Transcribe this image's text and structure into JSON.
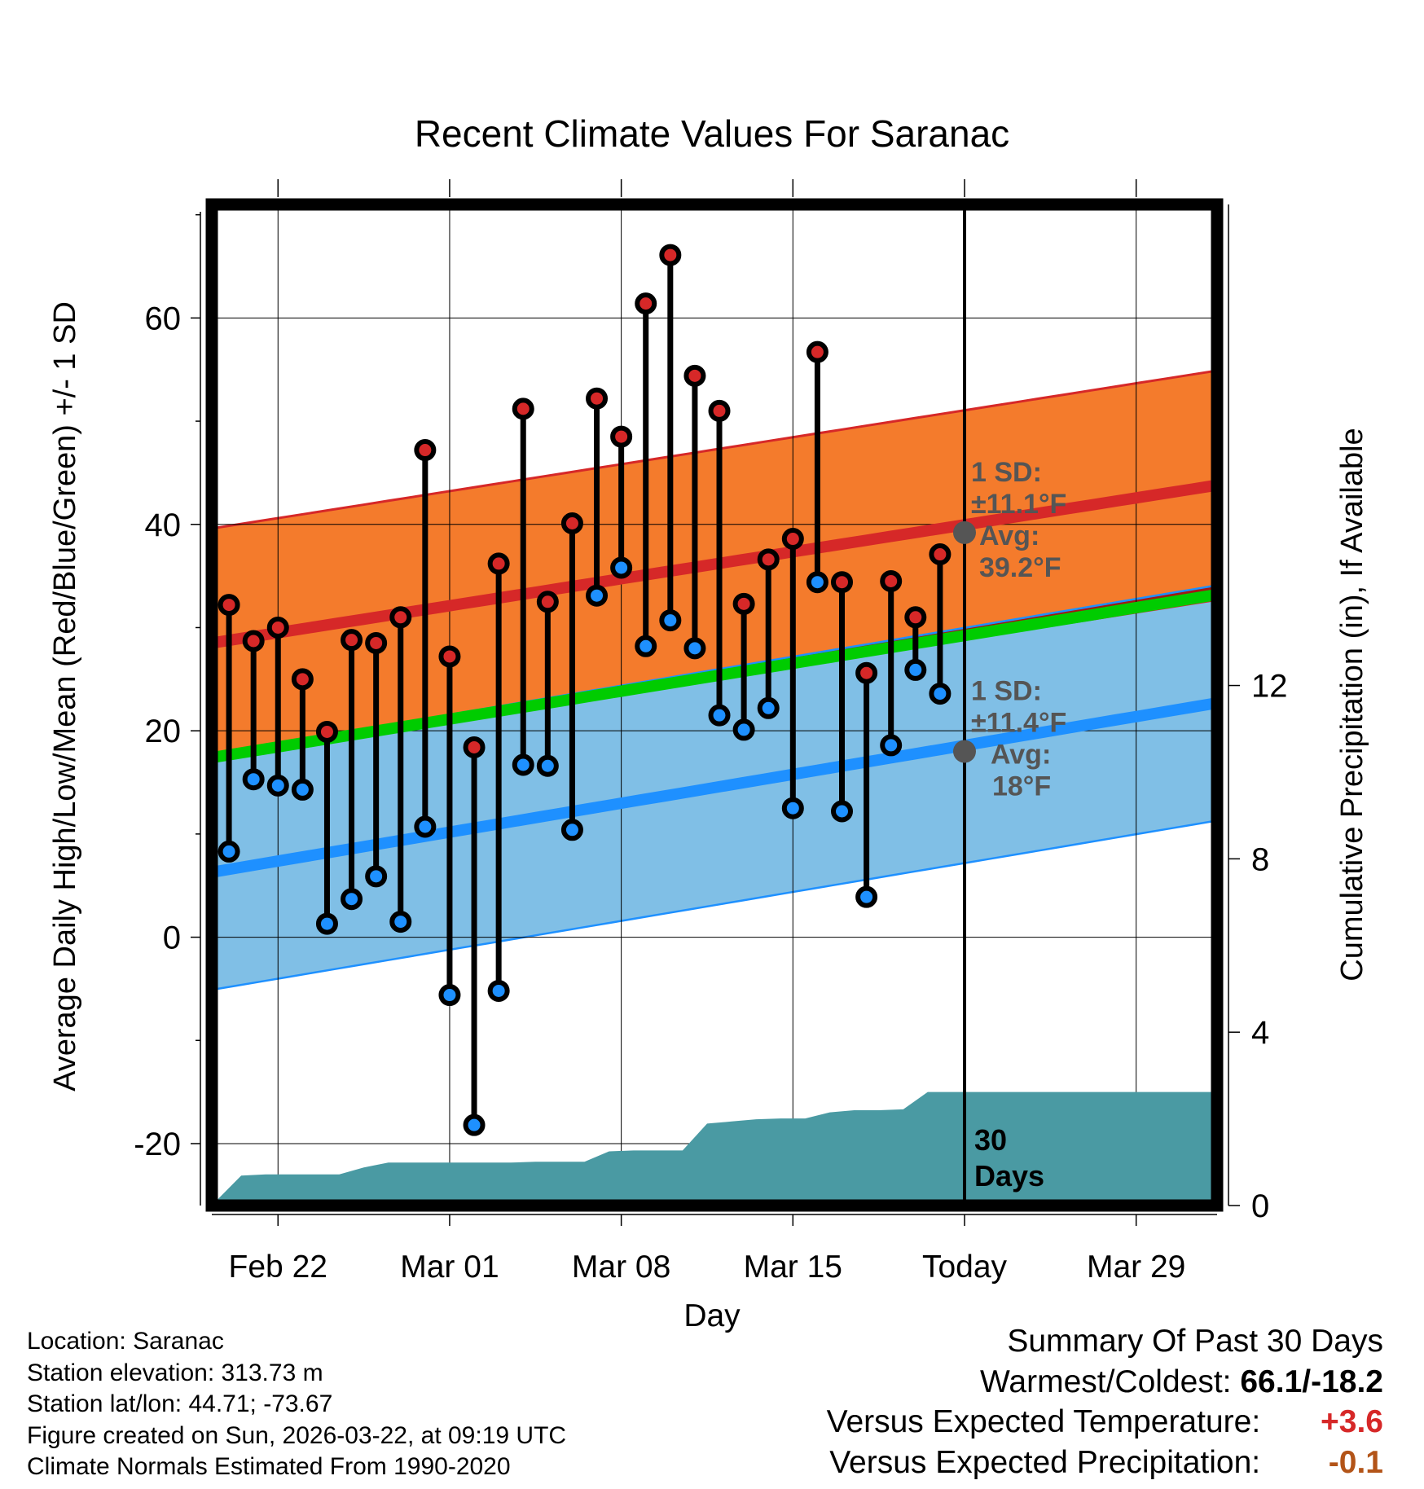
{
  "chart_data": {
    "type": "line",
    "title": "Recent Climate Values For Saranac",
    "xlabel": "Day",
    "ylabel": "Average Daily High/Low/Mean (Red/Blue/Green) +/- 1 SD",
    "y2label": "Cumulative Precipitation (in), If Available",
    "ylim": [
      -26,
      71
    ],
    "y2lim": [
      0,
      23.1
    ],
    "y_ticks": [
      "60",
      "40",
      "20",
      "0",
      "-20"
    ],
    "y_tick_values": [
      60,
      40,
      20,
      0,
      -20
    ],
    "y2_ticks": [
      "12",
      "8",
      "4",
      "0"
    ],
    "y2_tick_values": [
      12,
      8,
      4,
      0
    ],
    "x_ticks": [
      "Feb 22",
      "Mar 01",
      "Mar 08",
      "Mar 15",
      "Today",
      "Mar 29"
    ],
    "x_tick_days": [
      2,
      9,
      16,
      23,
      30,
      37
    ],
    "x_range": [
      -0.7,
      40.3
    ],
    "today_day": 30,
    "days_label": "30\nDays",
    "days_label_line1": "30",
    "days_label_line2": "Days",
    "highs": [
      32.2,
      28.7,
      30.0,
      25.0,
      19.9,
      28.8,
      28.5,
      31.0,
      47.2,
      27.2,
      18.4,
      36.2,
      51.2,
      32.5,
      40.1,
      52.2,
      48.5,
      61.4,
      66.1,
      54.4,
      51.0,
      32.3,
      36.6,
      38.6,
      56.7,
      34.4,
      25.6,
      34.5,
      31.0,
      37.1
    ],
    "lows": [
      8.3,
      15.3,
      14.7,
      14.3,
      1.3,
      3.7,
      5.9,
      1.5,
      10.7,
      -5.6,
      -18.2,
      -5.2,
      16.7,
      16.6,
      10.4,
      33.1,
      35.8,
      28.2,
      30.7,
      28.0,
      21.5,
      20.1,
      22.2,
      12.5,
      34.4,
      12.2,
      3.9,
      18.6,
      25.9,
      23.6
    ],
    "normal_high": {
      "start": 28.5,
      "end": 43.8,
      "sd": 11.1,
      "today_avg": 39.2
    },
    "normal_low": {
      "start": 6.3,
      "end": 22.7,
      "sd": 11.4,
      "today_avg": 18.0
    },
    "normal_mean": {
      "start": 17.4,
      "end": 33.2
    },
    "precip_cumulative": [
      0.12,
      0.69,
      0.72,
      0.72,
      0.72,
      0.72,
      0.88,
      0.99,
      0.99,
      0.99,
      0.99,
      0.99,
      0.99,
      1.01,
      1.01,
      1.01,
      1.25,
      1.27,
      1.27,
      1.27,
      1.89,
      1.94,
      1.99,
      2.01,
      2.01,
      2.15,
      2.2,
      2.2,
      2.22,
      2.62,
      2.62
    ],
    "precip_extension": [
      2.62,
      2.62
    ],
    "annotations": {
      "high_sd_label": "1 SD:",
      "high_sd_value": "±11.1°F",
      "high_avg_label": "Avg:",
      "high_avg_value": "39.2°F",
      "low_sd_label": "1 SD:",
      "low_sd_value": "±11.4°F",
      "low_avg_label": "Avg:",
      "low_avg_value": "18°F"
    },
    "colors": {
      "high_band": "#f47b2c",
      "high_line": "#d62828",
      "low_band": "#80bfe6",
      "low_line": "#1e90ff",
      "mean_line": "#00cc00",
      "overlap": "#9b1313",
      "precip": "#4a9aa3",
      "high_marker": "#d62828",
      "low_marker": "#1e90ff",
      "annotation": "#555555"
    }
  },
  "info": {
    "location": "Location: Saranac",
    "elevation": "Station elevation: 313.73 m",
    "latlon": "Station lat/lon: 44.71; -73.67",
    "created": "Figure created on Sun, 2026-03-22, at 09:19 UTC",
    "normals": "Climate Normals Estimated From 1990-2020"
  },
  "summary": {
    "title": "Summary Of Past 30 Days",
    "warm_cold_label": "Warmest/Coldest:",
    "warm_cold_value": "66.1/-18.2",
    "temp_label": "Versus Expected Temperature:",
    "temp_value": "+3.6",
    "temp_color": "#d62828",
    "precip_label": "Versus Expected Precipitation:",
    "precip_value": "-0.1",
    "precip_color": "#b35418"
  }
}
